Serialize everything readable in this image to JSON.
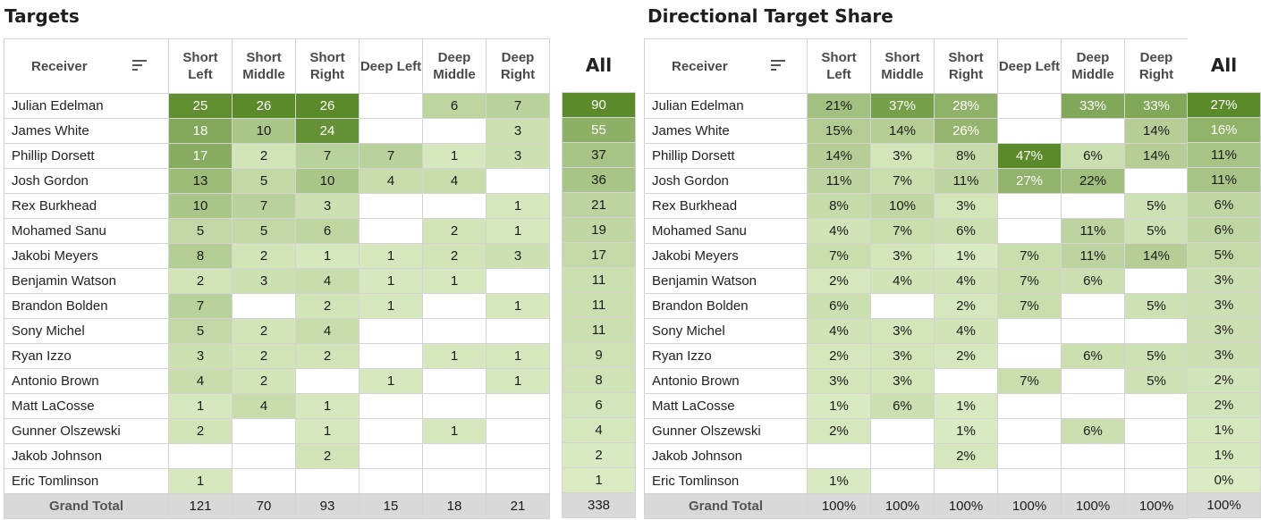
{
  "left_title": "Targets",
  "right_title": "Directional Target Share",
  "receiver_header": "Receiver",
  "all_header": "All",
  "grand_total_label": "Grand Total",
  "columns": [
    "Short Left",
    "Short Middle",
    "Short Right",
    "Deep Left",
    "Deep Middle",
    "Deep Right"
  ],
  "colors": {
    "dark": "#5b8a2a",
    "light": "#dcebc4",
    "border": "#d4d4d4",
    "total_bg": "#d9d9d9"
  },
  "chart_data": [
    {
      "type": "heatmap",
      "title": "Targets",
      "columns": [
        "Short Left",
        "Short Middle",
        "Short Right",
        "Deep Left",
        "Deep Middle",
        "Deep Right"
      ],
      "rows": [
        {
          "receiver": "Julian Edelman",
          "values": [
            25,
            26,
            26,
            null,
            6,
            7
          ],
          "all": 90
        },
        {
          "receiver": "James White",
          "values": [
            18,
            10,
            24,
            null,
            null,
            3
          ],
          "all": 55
        },
        {
          "receiver": "Phillip Dorsett",
          "values": [
            17,
            2,
            7,
            7,
            1,
            3
          ],
          "all": 37
        },
        {
          "receiver": "Josh Gordon",
          "values": [
            13,
            5,
            10,
            4,
            4,
            null
          ],
          "all": 36
        },
        {
          "receiver": "Rex Burkhead",
          "values": [
            10,
            7,
            3,
            null,
            null,
            1
          ],
          "all": 21
        },
        {
          "receiver": "Mohamed Sanu",
          "values": [
            5,
            5,
            6,
            null,
            2,
            1
          ],
          "all": 19
        },
        {
          "receiver": "Jakobi Meyers",
          "values": [
            8,
            2,
            1,
            1,
            2,
            3
          ],
          "all": 17
        },
        {
          "receiver": "Benjamin Watson",
          "values": [
            2,
            3,
            4,
            1,
            1,
            null
          ],
          "all": 11
        },
        {
          "receiver": "Brandon Bolden",
          "values": [
            7,
            null,
            2,
            1,
            null,
            1
          ],
          "all": 11
        },
        {
          "receiver": "Sony Michel",
          "values": [
            5,
            2,
            4,
            null,
            null,
            null
          ],
          "all": 11
        },
        {
          "receiver": "Ryan Izzo",
          "values": [
            3,
            2,
            2,
            null,
            1,
            1
          ],
          "all": 9
        },
        {
          "receiver": "Antonio Brown",
          "values": [
            4,
            2,
            null,
            1,
            null,
            1
          ],
          "all": 8
        },
        {
          "receiver": "Matt LaCosse",
          "values": [
            1,
            4,
            1,
            null,
            null,
            null
          ],
          "all": 6
        },
        {
          "receiver": "Gunner Olszewski",
          "values": [
            2,
            null,
            1,
            null,
            1,
            null
          ],
          "all": 4
        },
        {
          "receiver": "Jakob Johnson",
          "values": [
            null,
            null,
            2,
            null,
            null,
            null
          ],
          "all": 2
        },
        {
          "receiver": "Eric Tomlinson",
          "values": [
            1,
            null,
            null,
            null,
            null,
            null
          ],
          "all": 1
        }
      ],
      "totals": [
        121,
        70,
        93,
        15,
        18,
        21
      ],
      "total_all": 338
    },
    {
      "type": "heatmap",
      "title": "Directional Target Share",
      "columns": [
        "Short Left",
        "Short Middle",
        "Short Right",
        "Deep Left",
        "Deep Middle",
        "Deep Right"
      ],
      "rows": [
        {
          "receiver": "Julian Edelman",
          "values": [
            "21%",
            "37%",
            "28%",
            null,
            "33%",
            "33%"
          ],
          "all": "27%"
        },
        {
          "receiver": "James White",
          "values": [
            "15%",
            "14%",
            "26%",
            null,
            null,
            "14%"
          ],
          "all": "16%"
        },
        {
          "receiver": "Phillip Dorsett",
          "values": [
            "14%",
            "3%",
            "8%",
            "47%",
            "6%",
            "14%"
          ],
          "all": "11%"
        },
        {
          "receiver": "Josh Gordon",
          "values": [
            "11%",
            "7%",
            "11%",
            "27%",
            "22%",
            null
          ],
          "all": "11%"
        },
        {
          "receiver": "Rex Burkhead",
          "values": [
            "8%",
            "10%",
            "3%",
            null,
            null,
            "5%"
          ],
          "all": "6%"
        },
        {
          "receiver": "Mohamed Sanu",
          "values": [
            "4%",
            "7%",
            "6%",
            null,
            "11%",
            "5%"
          ],
          "all": "6%"
        },
        {
          "receiver": "Jakobi Meyers",
          "values": [
            "7%",
            "3%",
            "1%",
            "7%",
            "11%",
            "14%"
          ],
          "all": "5%"
        },
        {
          "receiver": "Benjamin Watson",
          "values": [
            "2%",
            "4%",
            "4%",
            "7%",
            "6%",
            null
          ],
          "all": "3%"
        },
        {
          "receiver": "Brandon Bolden",
          "values": [
            "6%",
            null,
            "2%",
            "7%",
            null,
            "5%"
          ],
          "all": "3%"
        },
        {
          "receiver": "Sony Michel",
          "values": [
            "4%",
            "3%",
            "4%",
            null,
            null,
            null
          ],
          "all": "3%"
        },
        {
          "receiver": "Ryan Izzo",
          "values": [
            "2%",
            "3%",
            "2%",
            null,
            "6%",
            "5%"
          ],
          "all": "3%"
        },
        {
          "receiver": "Antonio Brown",
          "values": [
            "3%",
            "3%",
            null,
            "7%",
            null,
            "5%"
          ],
          "all": "2%"
        },
        {
          "receiver": "Matt LaCosse",
          "values": [
            "1%",
            "6%",
            "1%",
            null,
            null,
            null
          ],
          "all": "2%"
        },
        {
          "receiver": "Gunner Olszewski",
          "values": [
            "2%",
            null,
            "1%",
            null,
            "6%",
            null
          ],
          "all": "1%"
        },
        {
          "receiver": "Jakob Johnson",
          "values": [
            null,
            null,
            "2%",
            null,
            null,
            null
          ],
          "all": "1%"
        },
        {
          "receiver": "Eric Tomlinson",
          "values": [
            "1%",
            null,
            null,
            null,
            null,
            null
          ],
          "all": "0%"
        }
      ],
      "totals": [
        "100%",
        "100%",
        "100%",
        "100%",
        "100%",
        "100%"
      ],
      "total_all": "100%"
    }
  ]
}
